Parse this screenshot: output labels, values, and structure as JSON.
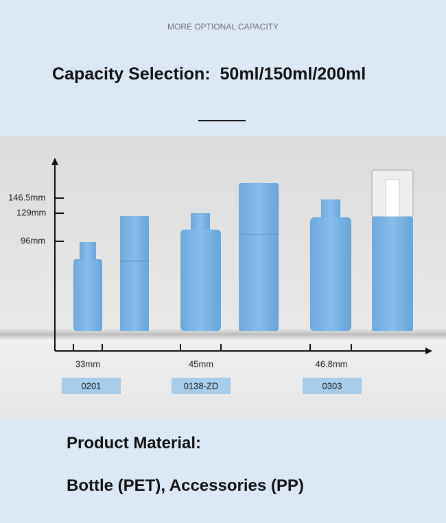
{
  "header": {
    "subtitle": "MORE OPTIONAL CAPACITY",
    "title": "Capacity Selection:  50ml/150ml/200ml"
  },
  "diagram": {
    "heights": [
      "146.5mm",
      "129mm",
      "96mm"
    ],
    "widths": [
      "33mm",
      "45mm",
      "46.8mm"
    ],
    "codes": [
      "0201",
      "0138-ZD",
      "0303"
    ]
  },
  "footer": {
    "material_title": "Product Material:",
    "material": "Bottle (PET), Accessories (PP)"
  }
}
